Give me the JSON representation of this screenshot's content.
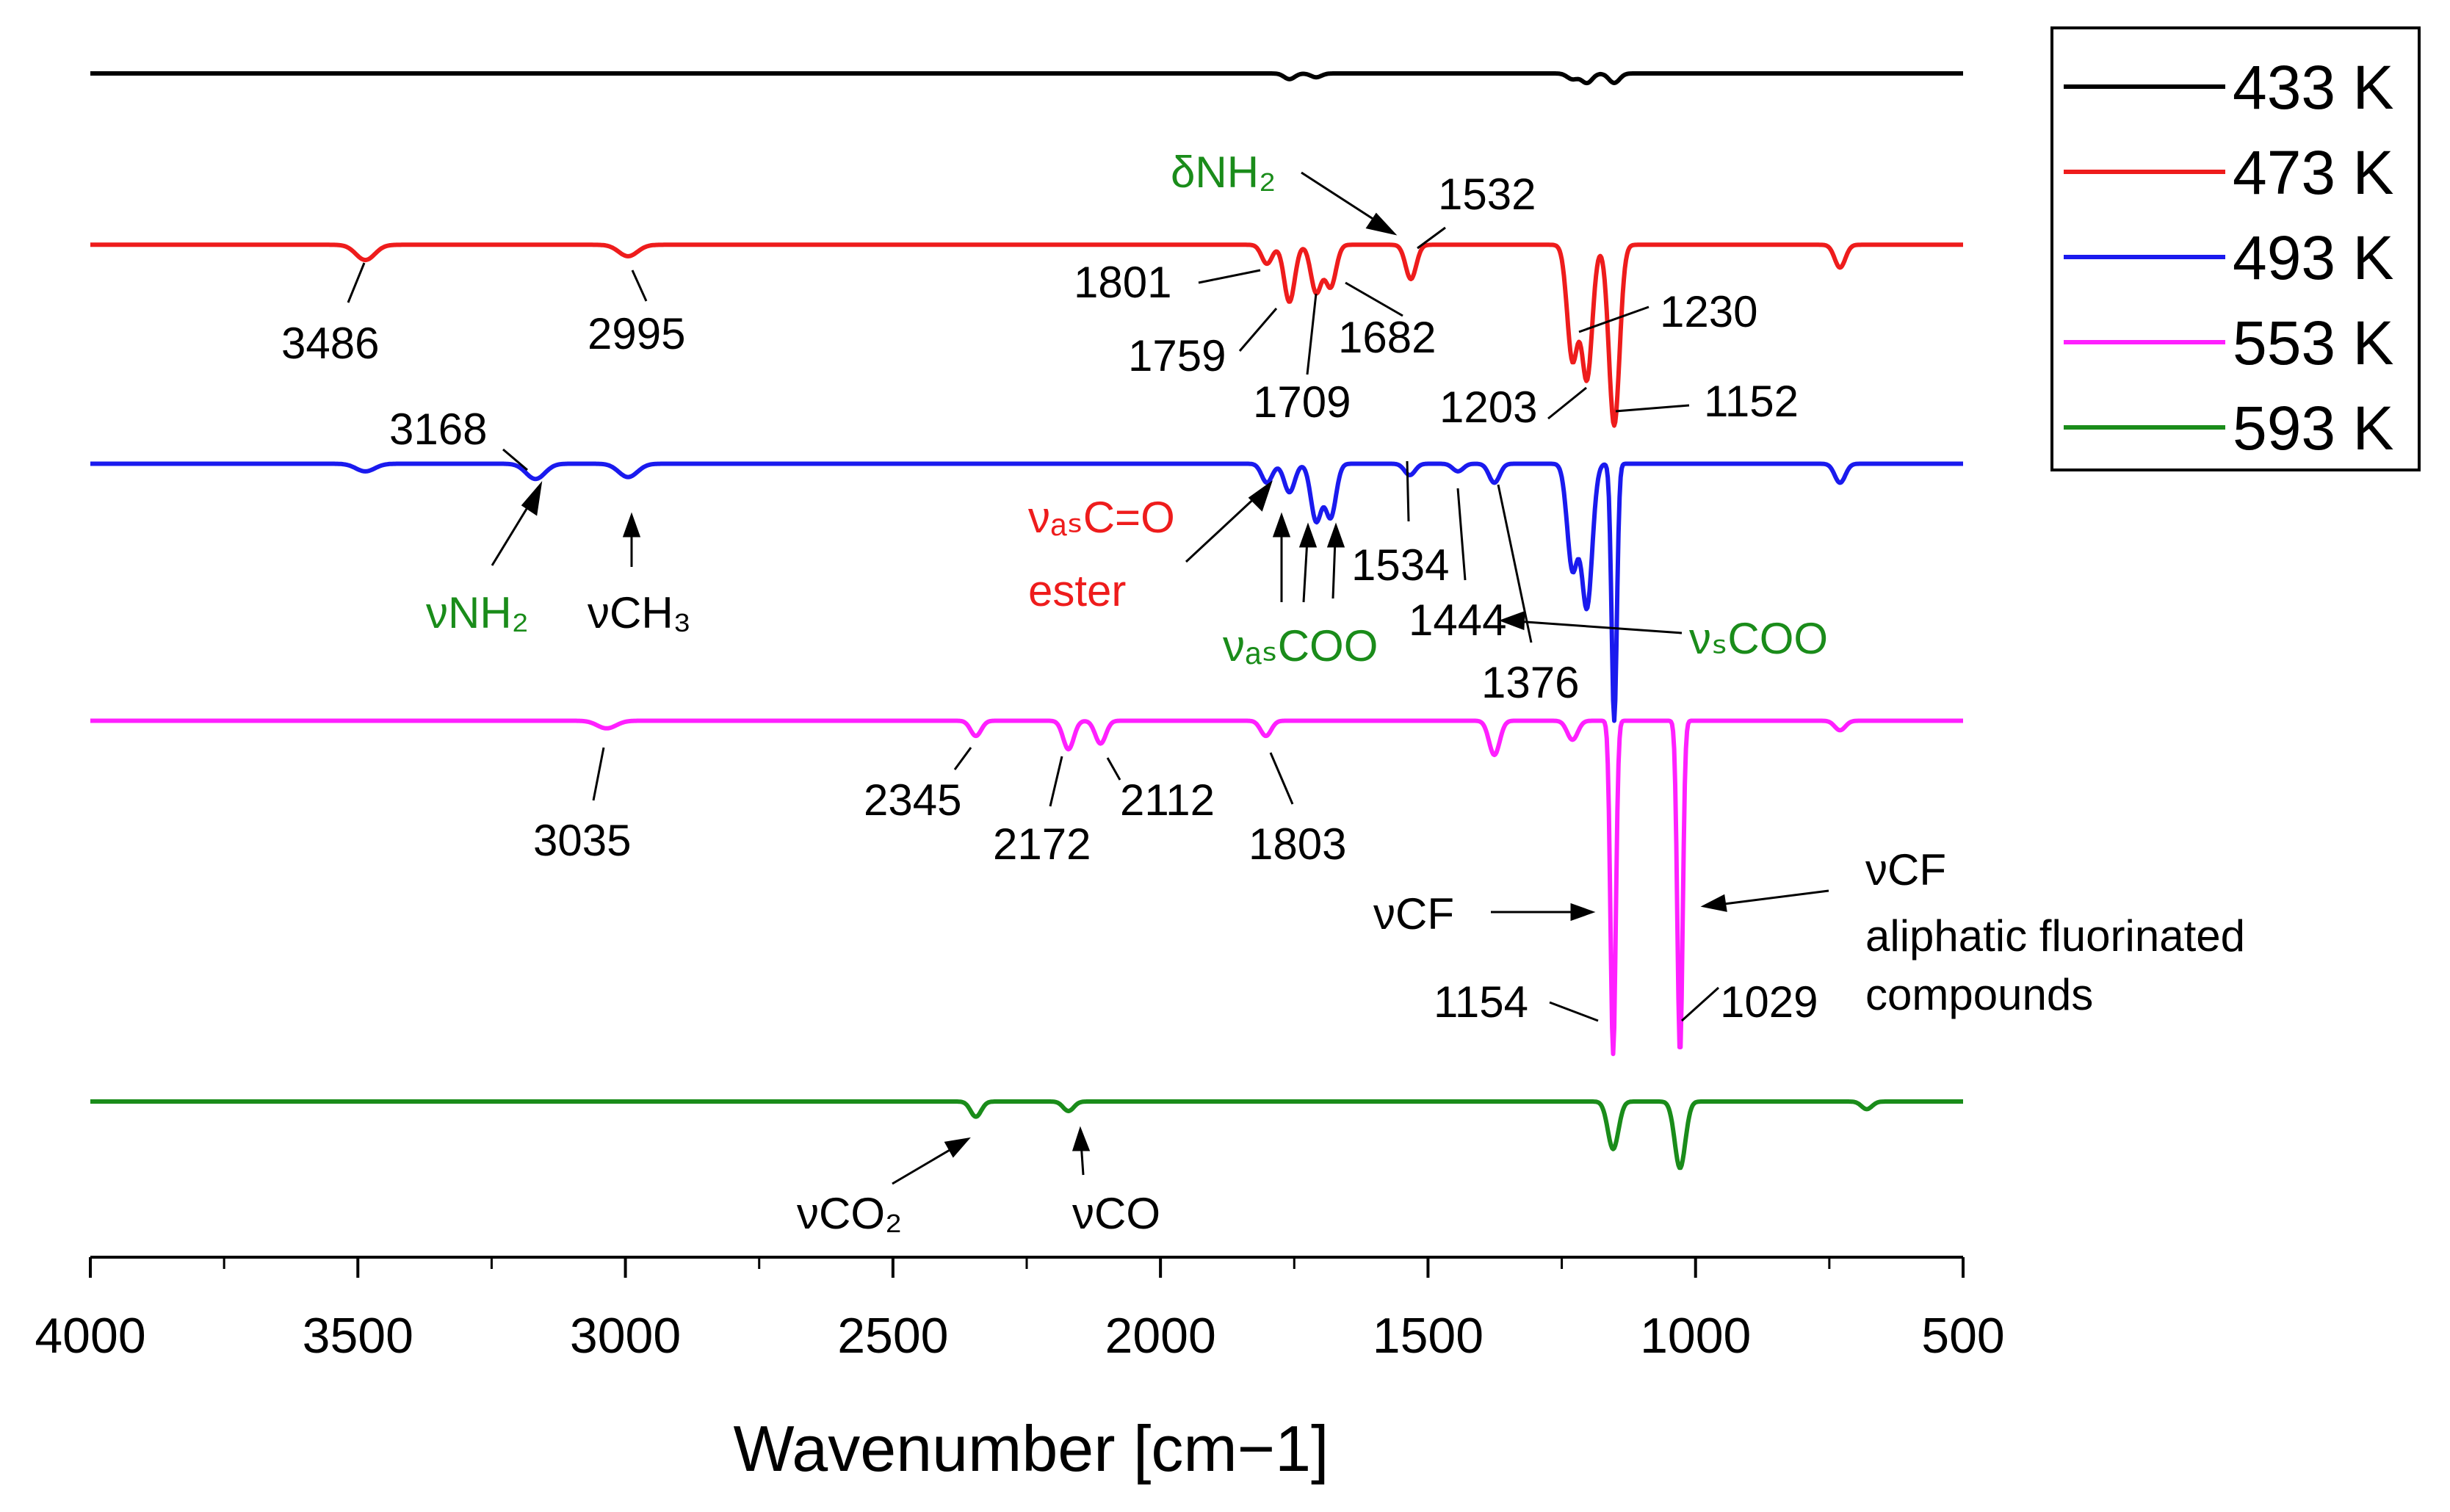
{
  "chart_data": {
    "type": "line",
    "title": "",
    "xlabel": "Wavenumber [cm−1]",
    "ylabel": "",
    "xlim": [
      4000,
      500
    ],
    "x_reversed": true,
    "x_ticks": [
      4000,
      3500,
      3000,
      2500,
      2000,
      1500,
      1000,
      500
    ],
    "x_tick_labels": [
      "4000",
      "3500",
      "3000",
      "2500",
      "2000",
      "1500",
      "1000",
      "500"
    ],
    "grid": false,
    "legend_position": "top-right",
    "baseline_units": "relative transmittance (arbitrary, stacked)",
    "series": [
      {
        "name": "433 K",
        "color": "#000000",
        "baseline": 4.6,
        "peaks": [
          [
            1759,
            0.03
          ],
          [
            1709,
            0.02
          ],
          [
            1203,
            0.05
          ],
          [
            1152,
            0.05
          ],
          [
            1230,
            0.03
          ]
        ]
      },
      {
        "name": "473 K",
        "color": "#ee1c1c",
        "baseline": 3.7,
        "peaks": [
          [
            3486,
            0.08
          ],
          [
            2995,
            0.06
          ],
          [
            1801,
            0.1
          ],
          [
            1759,
            0.3
          ],
          [
            1709,
            0.25
          ],
          [
            1682,
            0.22
          ],
          [
            1532,
            0.18
          ],
          [
            1230,
            0.6
          ],
          [
            1203,
            0.7
          ],
          [
            1152,
            0.95
          ],
          [
            730,
            0.12
          ]
        ]
      },
      {
        "name": "493 K",
        "color": "#1a1aee",
        "baseline": 2.55,
        "peaks": [
          [
            3486,
            0.04
          ],
          [
            3168,
            0.08
          ],
          [
            2995,
            0.07
          ],
          [
            1801,
            0.1
          ],
          [
            1759,
            0.15
          ],
          [
            1709,
            0.3
          ],
          [
            1682,
            0.28
          ],
          [
            1534,
            0.06
          ],
          [
            1444,
            0.04
          ],
          [
            1376,
            0.1
          ],
          [
            1230,
            0.55
          ],
          [
            1203,
            0.75
          ],
          [
            1152,
            1.35
          ],
          [
            730,
            0.1
          ]
        ]
      },
      {
        "name": "553 K",
        "color": "#ff20ff",
        "baseline": 1.2,
        "peaks": [
          [
            3035,
            0.04
          ],
          [
            2345,
            0.08
          ],
          [
            2172,
            0.15
          ],
          [
            2112,
            0.12
          ],
          [
            1803,
            0.08
          ],
          [
            1376,
            0.18
          ],
          [
            1230,
            0.1
          ],
          [
            1154,
            1.75
          ],
          [
            1029,
            1.75
          ],
          [
            730,
            0.05
          ]
        ]
      },
      {
        "name": "593 K",
        "color": "#1a8c1a",
        "baseline": -0.8,
        "peaks": [
          [
            2345,
            0.08
          ],
          [
            2172,
            0.05
          ],
          [
            1154,
            0.25
          ],
          [
            1029,
            0.35
          ],
          [
            680,
            0.04
          ]
        ]
      }
    ],
    "peak_labels": [
      {
        "text": "3486",
        "series": "473 K"
      },
      {
        "text": "2995",
        "series": "473 K"
      },
      {
        "text": "1801",
        "series": "473 K"
      },
      {
        "text": "1759",
        "series": "473 K"
      },
      {
        "text": "1709",
        "series": "473 K"
      },
      {
        "text": "1682",
        "series": "473 K"
      },
      {
        "text": "1532",
        "series": "473 K"
      },
      {
        "text": "1230",
        "series": "473 K"
      },
      {
        "text": "1203",
        "series": "473 K"
      },
      {
        "text": "1152",
        "series": "473 K"
      },
      {
        "text": "3168",
        "series": "493 K"
      },
      {
        "text": "1534",
        "series": "493 K"
      },
      {
        "text": "1444",
        "series": "493 K"
      },
      {
        "text": "1376",
        "series": "493 K"
      },
      {
        "text": "3035",
        "series": "553 K"
      },
      {
        "text": "2345",
        "series": "553 K"
      },
      {
        "text": "2172",
        "series": "553 K"
      },
      {
        "text": "2112",
        "series": "553 K"
      },
      {
        "text": "1803",
        "series": "553 K"
      },
      {
        "text": "1154",
        "series": "553 K"
      },
      {
        "text": "1029",
        "series": "553 K"
      }
    ],
    "assignments": {
      "nh2_bend": "δNH₂",
      "nh2_stretch": "νNH₂",
      "ch3_stretch": "νCH₃",
      "ester_co": "νₐₛC=O",
      "ester_word": "ester",
      "coo_as": "νₐₛCOO",
      "coo_s": "νₛCOO",
      "cf_left": "νCF",
      "cf_right": "νCF",
      "cf_desc_1": "aliphatic fluorinated",
      "cf_desc_2": "compounds",
      "co2": "νCO₂",
      "co": "νCO"
    },
    "annotation_colors": {
      "green": "#1a8c1a",
      "red": "#ee1c1c",
      "black": "#000000"
    }
  }
}
